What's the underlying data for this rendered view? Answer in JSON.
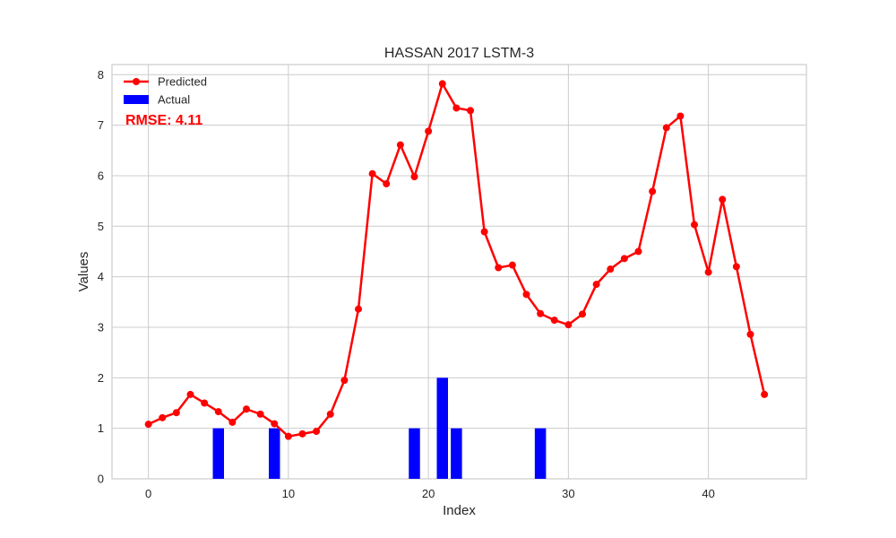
{
  "chart_data": {
    "type": "bar+line",
    "title": "HASSAN 2017 LSTM-3",
    "xlabel": "Index",
    "ylabel": "Values",
    "xlim": [
      -2.6,
      47.0
    ],
    "ylim": [
      0,
      8.2
    ],
    "xticks": [
      0,
      10,
      20,
      30,
      40
    ],
    "yticks": [
      0,
      1,
      2,
      3,
      4,
      5,
      6,
      7,
      8
    ],
    "grid": true,
    "legend_position": "upper-left",
    "annotation": "RMSE: 4.11",
    "series": [
      {
        "name": "Predicted",
        "kind": "line",
        "color": "#ff0000",
        "x": [
          0,
          1,
          2,
          3,
          4,
          5,
          6,
          7,
          8,
          9,
          10,
          11,
          12,
          13,
          14,
          15,
          16,
          17,
          18,
          19,
          20,
          21,
          22,
          23,
          24,
          25,
          26,
          27,
          28,
          29,
          30,
          31,
          32,
          33,
          34,
          35,
          36,
          37,
          38,
          39,
          40,
          41,
          42,
          43,
          44
        ],
        "values": [
          1.08,
          1.21,
          1.31,
          1.67,
          1.5,
          1.33,
          1.12,
          1.38,
          1.28,
          1.09,
          0.84,
          0.89,
          0.94,
          1.28,
          1.95,
          3.36,
          6.04,
          5.84,
          6.61,
          5.98,
          6.88,
          7.82,
          7.34,
          7.29,
          4.89,
          4.18,
          4.23,
          3.65,
          3.27,
          3.14,
          3.05,
          3.26,
          3.85,
          4.15,
          4.36,
          4.5,
          5.69,
          6.95,
          7.18,
          5.03,
          4.09,
          5.53,
          4.2,
          2.86,
          1.67
        ]
      },
      {
        "name": "Actual",
        "kind": "bar",
        "color": "#0000ff",
        "x": [
          0,
          1,
          2,
          3,
          4,
          5,
          6,
          7,
          8,
          9,
          10,
          11,
          12,
          13,
          14,
          15,
          16,
          17,
          18,
          19,
          20,
          21,
          22,
          23,
          24,
          25,
          26,
          27,
          28,
          29,
          30,
          31,
          32,
          33,
          34,
          35,
          36,
          37,
          38,
          39,
          40,
          41,
          42,
          43,
          44
        ],
        "values": [
          0,
          0,
          0,
          0,
          0,
          1,
          0,
          0,
          0,
          1,
          0,
          0,
          0,
          0,
          0,
          0,
          0,
          0,
          0,
          1,
          0,
          2,
          1,
          0,
          0,
          0,
          0,
          0,
          1,
          0,
          0,
          0,
          0,
          0,
          0,
          0,
          0,
          0,
          0,
          0,
          0,
          0,
          0,
          0,
          0
        ]
      }
    ]
  },
  "colors": {
    "annotation": "#ff0000",
    "grid": "#cccccc",
    "frame": "#cccccc",
    "background": "#ffffff"
  }
}
